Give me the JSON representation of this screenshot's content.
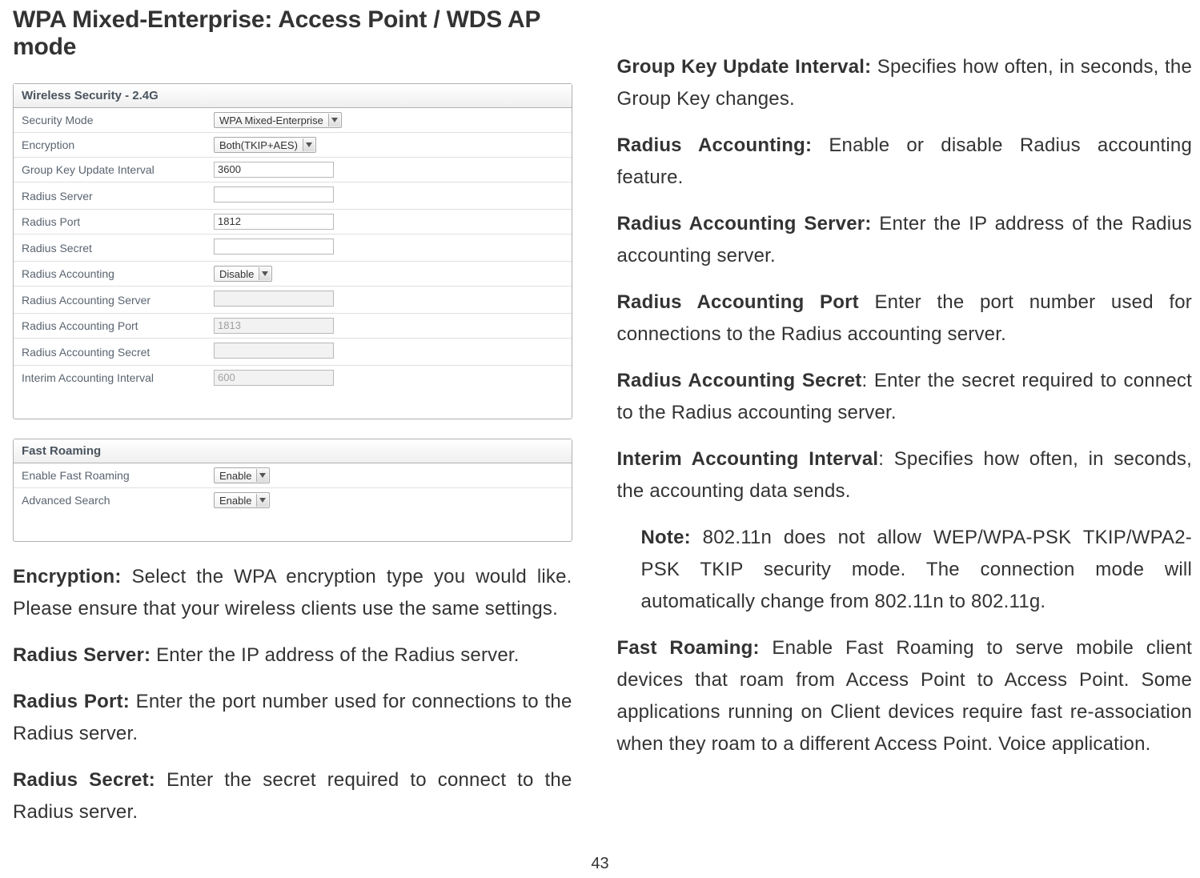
{
  "title": "WPA Mixed-Enterprise: Access Point / WDS AP mode",
  "page_number": "43",
  "security_panel": {
    "header": "Wireless Security - 2.4G",
    "rows": [
      {
        "label": "Security Mode",
        "type": "dropdown",
        "value": "WPA Mixed-Enterprise"
      },
      {
        "label": "Encryption",
        "type": "dropdown",
        "value": "Both(TKIP+AES)"
      },
      {
        "label": "Group Key Update Interval",
        "type": "input",
        "value": "3600"
      },
      {
        "label": "Radius Server",
        "type": "input",
        "value": ""
      },
      {
        "label": "Radius Port",
        "type": "input",
        "value": "1812"
      },
      {
        "label": "Radius Secret",
        "type": "input",
        "value": ""
      },
      {
        "label": "Radius Accounting",
        "type": "dropdown",
        "value": "Disable"
      },
      {
        "label": "Radius Accounting Server",
        "type": "input",
        "value": "",
        "disabled": true
      },
      {
        "label": "Radius Accounting Port",
        "type": "input",
        "value": "1813",
        "disabled": true
      },
      {
        "label": "Radius Accounting Secret",
        "type": "input",
        "value": "",
        "disabled": true
      },
      {
        "label": "Interim Accounting Interval",
        "type": "input",
        "value": "600",
        "disabled": true
      }
    ]
  },
  "roaming_panel": {
    "header": "Fast Roaming",
    "rows": [
      {
        "label": "Enable Fast Roaming",
        "type": "dropdown",
        "value": "Enable"
      },
      {
        "label": "Advanced Search",
        "type": "dropdown",
        "value": "Enable"
      }
    ]
  },
  "left_paragraphs": [
    {
      "bold": "Encryption:",
      "text": " Select the WPA encryption type you would like. Please ensure that your wireless clients use the same settings."
    },
    {
      "bold": "Radius Server:",
      "text": " Enter the IP address of the Radius server."
    },
    {
      "bold": "Radius Port:",
      "text": " Enter the port number used for connections to the Radius server."
    },
    {
      "bold": "Radius Secret:",
      "text": " Enter the secret required to connect to the Radius server."
    }
  ],
  "right_paragraphs": [
    {
      "bold": "Group Key Update Interval:",
      "text": " Specifies how often, in seconds, the Group Key changes."
    },
    {
      "bold": "Radius Accounting:",
      "text": " Enable or disable Radius accounting feature."
    },
    {
      "bold": "Radius Accounting Server:",
      "text": " Enter the IP address of the Radius accounting server."
    },
    {
      "bold": "Radius Accounting Port",
      "text": " Enter the port number used for connections to the Radius accounting server."
    },
    {
      "bold": "Radius Accounting Secret",
      "text": ": Enter the secret required to connect to the Radius accounting server."
    },
    {
      "bold": "Interim Accounting Interval",
      "text": ": Specifies how often, in seconds, the accounting data sends."
    }
  ],
  "note": {
    "bold": "Note:",
    "text": " 802.11n does not allow WEP/WPA-PSK TKIP/WPA2-PSK TKIP security mode. The connection mode will automatically change from 802.11n to 802.11g."
  },
  "fast_roaming_para": {
    "bold": "Fast Roaming:",
    "text": " Enable Fast Roaming to serve mobile client devices that roam from Access Point to Access Point. Some applications running on Client devices require fast re-association when they roam to a different Access Point. Voice application."
  }
}
